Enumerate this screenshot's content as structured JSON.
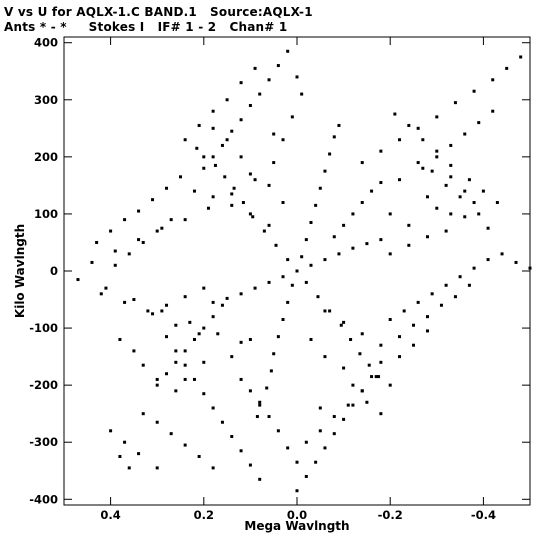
{
  "header": {
    "line1": "V vs U for AQLX-1.C BAND.1   Source:AQLX-1",
    "line2": "Ants * - *     Stokes I   IF# 1 - 2   Chan# 1"
  },
  "chart_data": {
    "type": "scatter",
    "title": "V vs U for AQLX-1.C BAND.1   Source:AQLX-1",
    "subtitle": "Ants * - *     Stokes I   IF# 1 - 2   Chan# 1",
    "xlabel": "Mega Wavlngth",
    "ylabel": "Kilo Wavlngth",
    "x_reversed": true,
    "xlim": [
      0.5,
      -0.5
    ],
    "ylim": [
      -410,
      410
    ],
    "xticks": [
      0.4,
      0.2,
      0.0,
      -0.2,
      -0.4
    ],
    "xtick_labels": [
      "0.4",
      "0.2",
      "0.0",
      "-0.2",
      "-0.4"
    ],
    "yticks": [
      400,
      300,
      200,
      100,
      0,
      -100,
      -200,
      -300,
      -400
    ],
    "ytick_labels": [
      "400",
      "300",
      "200",
      "100",
      "0",
      "-100",
      "-200",
      "-300",
      "-400"
    ],
    "grid": false,
    "color": "#000000",
    "series": [
      {
        "points": [
          [
            0.0,
            0.0
          ],
          [
            0.02,
            20
          ],
          [
            0.045,
            45
          ],
          [
            0.07,
            70
          ],
          [
            0.095,
            95
          ],
          [
            0.115,
            120
          ],
          [
            0.135,
            145
          ],
          [
            0.155,
            165
          ],
          [
            0.175,
            185
          ],
          [
            0.2,
            200
          ],
          [
            0.215,
            215
          ],
          [
            -0.02,
            -20
          ],
          [
            -0.045,
            -45
          ],
          [
            -0.07,
            -70
          ],
          [
            -0.095,
            -95
          ],
          [
            -0.115,
            -120
          ],
          [
            -0.135,
            -145
          ],
          [
            -0.155,
            -165
          ],
          [
            -0.175,
            -185
          ],
          [
            -0.2,
            -200
          ],
          [
            -0.01,
            25
          ],
          [
            -0.02,
            55
          ],
          [
            -0.03,
            85
          ],
          [
            -0.04,
            115
          ],
          [
            -0.05,
            145
          ],
          [
            -0.06,
            175
          ],
          [
            -0.07,
            205
          ],
          [
            -0.08,
            235
          ],
          [
            -0.09,
            255
          ],
          [
            0.01,
            -25
          ],
          [
            0.02,
            -55
          ],
          [
            0.03,
            -85
          ],
          [
            0.04,
            -115
          ],
          [
            0.05,
            -145
          ],
          [
            0.055,
            -175
          ],
          [
            0.065,
            -205
          ],
          [
            0.08,
            -235
          ],
          [
            0.085,
            -255
          ],
          [
            -0.03,
            10
          ],
          [
            -0.06,
            20
          ],
          [
            -0.09,
            30
          ],
          [
            -0.12,
            40
          ],
          [
            -0.15,
            48
          ],
          [
            -0.18,
            55
          ],
          [
            0.03,
            -10
          ],
          [
            0.06,
            -20
          ],
          [
            0.09,
            -30
          ],
          [
            0.12,
            -40
          ],
          [
            0.15,
            -48
          ],
          [
            0.18,
            -55
          ],
          [
            0.44,
            15
          ],
          [
            0.39,
            35
          ],
          [
            0.34,
            55
          ],
          [
            0.29,
            75
          ],
          [
            0.24,
            90
          ],
          [
            0.19,
            110
          ],
          [
            0.14,
            135
          ],
          [
            0.09,
            160
          ],
          [
            0.05,
            190
          ],
          [
            0.03,
            230
          ],
          [
            0.01,
            270
          ],
          [
            -0.01,
            310
          ],
          [
            0.0,
            340
          ],
          [
            0.47,
            -15
          ],
          [
            0.41,
            -30
          ],
          [
            0.35,
            -50
          ],
          [
            0.29,
            -70
          ],
          [
            0.23,
            -90
          ],
          [
            0.17,
            -110
          ],
          [
            0.12,
            -125
          ],
          [
            0.42,
            -40
          ],
          [
            0.37,
            -55
          ],
          [
            0.31,
            -75
          ],
          [
            0.26,
            -95
          ],
          [
            0.21,
            -110
          ],
          [
            0.28,
            -115
          ],
          [
            0.26,
            -140
          ],
          [
            0.24,
            -165
          ],
          [
            0.22,
            -190
          ],
          [
            0.2,
            -215
          ],
          [
            0.18,
            -240
          ],
          [
            0.16,
            -265
          ],
          [
            0.14,
            -290
          ],
          [
            0.12,
            -315
          ],
          [
            0.1,
            -340
          ],
          [
            0.08,
            -365
          ],
          [
            0.4,
            -280
          ],
          [
            0.37,
            -300
          ],
          [
            0.34,
            -320
          ],
          [
            0.3,
            -345
          ],
          [
            0.38,
            -325
          ],
          [
            0.36,
            -345
          ],
          [
            0.33,
            -250
          ],
          [
            0.3,
            -265
          ],
          [
            0.27,
            -285
          ],
          [
            0.24,
            -305
          ],
          [
            0.21,
            -325
          ],
          [
            0.18,
            -345
          ],
          [
            0.0,
            -385
          ],
          [
            -0.02,
            -360
          ],
          [
            -0.04,
            -335
          ],
          [
            -0.06,
            -310
          ],
          [
            -0.08,
            -285
          ],
          [
            -0.1,
            -260
          ],
          [
            -0.12,
            -235
          ],
          [
            -0.14,
            -210
          ],
          [
            -0.16,
            -185
          ],
          [
            -0.18,
            -160
          ],
          [
            -0.02,
            -300
          ],
          [
            -0.05,
            -280
          ],
          [
            -0.08,
            -255
          ],
          [
            -0.11,
            -235
          ],
          [
            -0.14,
            -210
          ],
          [
            -0.17,
            -185
          ],
          [
            -0.2,
            -85
          ],
          [
            -0.23,
            -70
          ],
          [
            -0.26,
            -55
          ],
          [
            -0.29,
            -40
          ],
          [
            -0.32,
            -25
          ],
          [
            -0.35,
            -10
          ],
          [
            -0.38,
            5
          ],
          [
            -0.41,
            20
          ],
          [
            -0.44,
            30
          ],
          [
            -0.47,
            15
          ],
          [
            -0.5,
            5
          ],
          [
            -0.22,
            -115
          ],
          [
            -0.25,
            -95
          ],
          [
            -0.28,
            -80
          ],
          [
            -0.31,
            -60
          ],
          [
            -0.34,
            -45
          ],
          [
            -0.37,
            -25
          ],
          [
            -0.25,
            -130
          ],
          [
            -0.28,
            -105
          ],
          [
            -0.43,
            120
          ],
          [
            -0.4,
            140
          ],
          [
            -0.37,
            160
          ],
          [
            -0.33,
            185
          ],
          [
            -0.3,
            210
          ],
          [
            -0.27,
            230
          ],
          [
            -0.24,
            255
          ],
          [
            -0.21,
            275
          ],
          [
            -0.48,
            375
          ],
          [
            -0.45,
            355
          ],
          [
            -0.42,
            335
          ],
          [
            -0.38,
            315
          ],
          [
            -0.34,
            295
          ],
          [
            -0.3,
            270
          ],
          [
            -0.26,
            250
          ],
          [
            -0.22,
            230
          ],
          [
            -0.18,
            210
          ],
          [
            -0.14,
            190
          ],
          [
            -0.42,
            280
          ],
          [
            -0.39,
            260
          ],
          [
            -0.36,
            240
          ],
          [
            -0.33,
            220
          ],
          [
            -0.3,
            200
          ],
          [
            -0.27,
            180
          ],
          [
            -0.3,
            110
          ],
          [
            -0.33,
            100
          ],
          [
            -0.36,
            95
          ],
          [
            -0.38,
            120
          ],
          [
            -0.35,
            130
          ],
          [
            -0.32,
            150
          ],
          [
            -0.29,
            175
          ],
          [
            0.02,
            385
          ],
          [
            0.04,
            360
          ],
          [
            0.06,
            335
          ],
          [
            0.08,
            310
          ],
          [
            0.1,
            290
          ],
          [
            0.12,
            265
          ],
          [
            0.14,
            245
          ],
          [
            0.16,
            220
          ],
          [
            0.18,
            200
          ],
          [
            0.2,
            180
          ],
          [
            0.09,
            355
          ],
          [
            0.12,
            330
          ],
          [
            0.15,
            300
          ],
          [
            0.18,
            280
          ],
          [
            0.21,
            255
          ],
          [
            0.24,
            230
          ],
          [
            0.25,
            165
          ],
          [
            0.28,
            145
          ],
          [
            0.31,
            125
          ],
          [
            0.34,
            105
          ],
          [
            0.37,
            90
          ],
          [
            0.4,
            70
          ],
          [
            0.43,
            50
          ],
          [
            0.27,
            90
          ],
          [
            0.3,
            70
          ],
          [
            0.33,
            50
          ],
          [
            0.36,
            30
          ],
          [
            0.39,
            10
          ],
          [
            0.12,
            -190
          ],
          [
            0.1,
            -210
          ],
          [
            0.08,
            -230
          ],
          [
            0.06,
            -255
          ],
          [
            0.04,
            -280
          ],
          [
            0.02,
            -310
          ],
          [
            0.0,
            -335
          ],
          [
            0.16,
            -60
          ],
          [
            0.18,
            -80
          ],
          [
            0.2,
            -100
          ],
          [
            0.22,
            -120
          ],
          [
            0.24,
            -140
          ],
          [
            0.26,
            -160
          ],
          [
            0.28,
            -180
          ],
          [
            0.3,
            -200
          ],
          [
            -0.08,
            60
          ],
          [
            -0.1,
            80
          ],
          [
            -0.12,
            100
          ],
          [
            -0.14,
            120
          ],
          [
            -0.16,
            140
          ],
          [
            -0.18,
            155
          ],
          [
            -0.06,
            -70
          ],
          [
            -0.1,
            -90
          ],
          [
            -0.14,
            -110
          ],
          [
            -0.18,
            -130
          ],
          [
            -0.22,
            -150
          ],
          [
            0.06,
            80
          ],
          [
            0.1,
            100
          ],
          [
            0.14,
            115
          ],
          [
            0.18,
            130
          ],
          [
            0.22,
            140
          ],
          [
            -0.06,
            -150
          ],
          [
            -0.1,
            -170
          ],
          [
            -0.12,
            -200
          ],
          [
            -0.15,
            -230
          ],
          [
            -0.18,
            -250
          ],
          [
            0.06,
            150
          ],
          [
            0.1,
            170
          ],
          [
            0.12,
            200
          ],
          [
            0.15,
            230
          ],
          [
            0.18,
            250
          ],
          [
            -0.2,
            30
          ],
          [
            -0.24,
            45
          ],
          [
            -0.28,
            60
          ],
          [
            -0.32,
            70
          ],
          [
            0.2,
            -30
          ],
          [
            0.24,
            -45
          ],
          [
            0.28,
            -60
          ],
          [
            0.32,
            -70
          ],
          [
            -0.2,
            100
          ],
          [
            -0.24,
            80
          ],
          [
            -0.28,
            130
          ],
          [
            -0.22,
            160
          ],
          [
            -0.26,
            190
          ],
          [
            0.2,
            -160
          ],
          [
            0.24,
            -190
          ],
          [
            0.26,
            -210
          ],
          [
            0.1,
            -120
          ],
          [
            0.14,
            -150
          ],
          [
            0.03,
            120
          ],
          [
            0.05,
            240
          ],
          [
            -0.03,
            -120
          ],
          [
            -0.05,
            -240
          ],
          [
            0.33,
            -165
          ],
          [
            0.3,
            -190
          ],
          [
            0.35,
            -140
          ],
          [
            0.38,
            -120
          ],
          [
            -0.33,
            165
          ],
          [
            -0.36,
            140
          ],
          [
            -0.39,
            100
          ],
          [
            -0.41,
            75
          ]
        ]
      }
    ]
  }
}
